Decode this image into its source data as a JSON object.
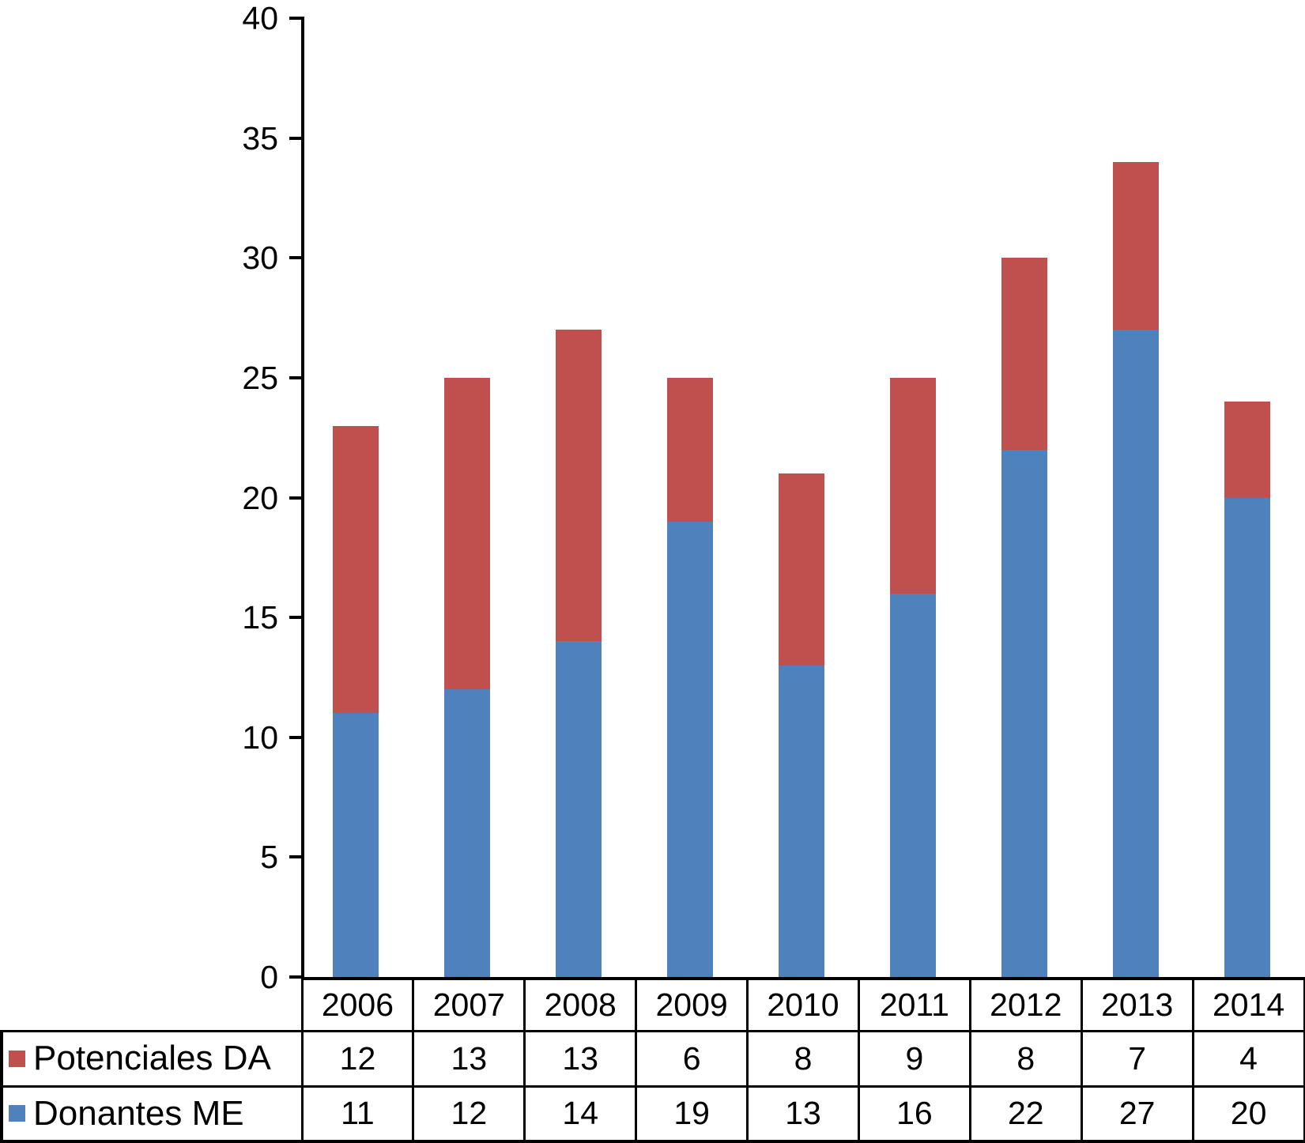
{
  "chart_data": {
    "type": "bar",
    "subtype": "stacked-vertical",
    "title": "",
    "xlabel": "",
    "ylabel": "",
    "categories": [
      "2006",
      "2007",
      "2008",
      "2009",
      "2010",
      "2011",
      "2012",
      "2013",
      "2014"
    ],
    "series": [
      {
        "name": "Potenciales DA",
        "color": "#C0504D",
        "values": [
          12,
          13,
          13,
          6,
          8,
          9,
          8,
          7,
          4
        ]
      },
      {
        "name": "Donantes ME",
        "color": "#4F81BD",
        "values": [
          11,
          12,
          14,
          19,
          13,
          16,
          22,
          27,
          20
        ]
      }
    ],
    "stack_order_bottom_to_top": [
      "Donantes ME",
      "Potenciales DA"
    ],
    "stacked_totals": [
      23,
      25,
      27,
      25,
      21,
      25,
      30,
      34,
      24
    ],
    "ylim": [
      0,
      40
    ],
    "yticks": [
      0,
      5,
      10,
      15,
      20,
      25,
      30,
      35,
      40
    ],
    "grid": false,
    "legend_position": "data-table-left",
    "data_table_shown": true,
    "axis_color": "#000000",
    "text_color": "#000000",
    "background_color": "#ffffff"
  }
}
